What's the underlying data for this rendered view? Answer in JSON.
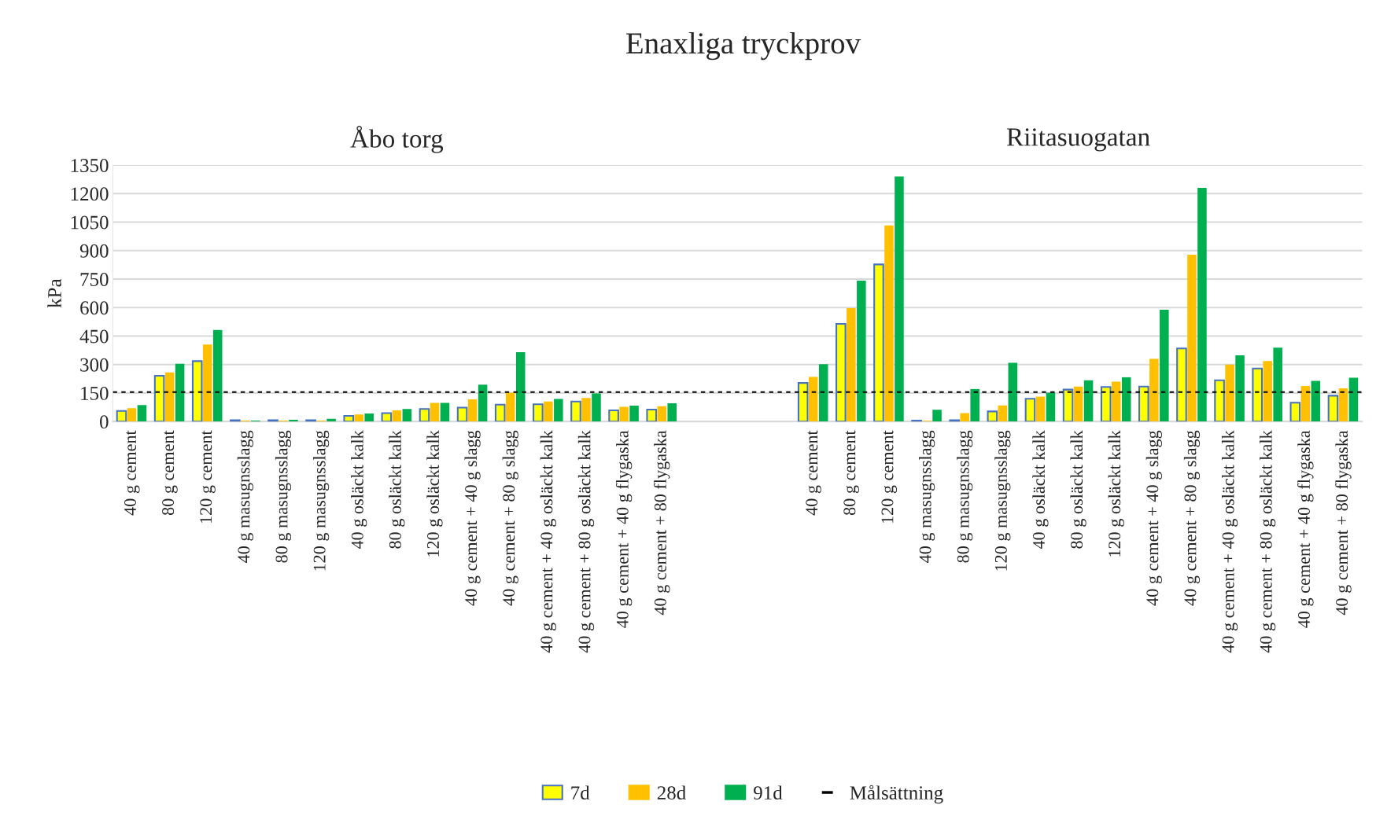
{
  "chart_data": {
    "type": "bar",
    "title": "Enaxliga tryckprov",
    "ylabel": "kPa",
    "annotations": [
      "Åbo torg",
      "Riitasuogatan"
    ],
    "categories": [
      "40 g cement",
      "80 g cement",
      "120 g cement",
      "40 g masugnsslagg",
      "80 g masugnsslagg",
      "120 g masugnsslagg",
      "40 g osläckt kalk",
      "80 g osläckt kalk",
      "120 g osläckt kalk",
      "40 g cement + 40 g slagg",
      "40 g cement + 80 g slagg",
      "40 g cement + 40 g osläckt kalk",
      "40 g cement + 80 g osläckt kalk",
      "40 g cement + 40 g flygaska",
      "40 g cement + 80 flygaska",
      null,
      null,
      null,
      "40 g cement",
      "80 g cement",
      "120 g cement",
      "40 g masugnsslagg",
      "80 g masugnsslagg",
      "120 g masugnsslagg",
      "40 g osläckt kalk",
      "80 g osläckt kalk",
      "120 g osläckt kalk",
      "40 g cement + 40 g slagg",
      "40 g cement + 80 g slagg",
      "40 g cement + 40 g osläckt kalk",
      "40 g cement + 80 g osläckt kalk",
      "40 g cement + 40 g flygaska",
      "40 g cement + 80 flygaska"
    ],
    "series": [
      {
        "name": "7d",
        "color": "#ffff00",
        "values": [
          56,
          241,
          318,
          7,
          7,
          7,
          30,
          44,
          66,
          73,
          89,
          91,
          105,
          59,
          63,
          null,
          null,
          null,
          203,
          514,
          827,
          5,
          7,
          53,
          120,
          168,
          182,
          184,
          385,
          217,
          279,
          99,
          136
        ]
      },
      {
        "name": "28d",
        "color": "#ffc000",
        "values": [
          70,
          258,
          405,
          5,
          5,
          5,
          37,
          59,
          98,
          117,
          152,
          105,
          124,
          77,
          80,
          null,
          null,
          null,
          235,
          597,
          1032,
          4,
          44,
          85,
          131,
          184,
          210,
          330,
          878,
          300,
          318,
          187,
          175
        ]
      },
      {
        "name": "91d",
        "color": "#00b050",
        "values": [
          87,
          304,
          482,
          5,
          9,
          14,
          42,
          66,
          98,
          194,
          365,
          119,
          148,
          84,
          96,
          null,
          null,
          null,
          302,
          742,
          1290,
          62,
          171,
          309,
          152,
          217,
          233,
          588,
          1230,
          348,
          389,
          214,
          230
        ]
      }
    ],
    "ref_lines": [
      {
        "axis": "y",
        "value": 155,
        "label": "Målsättning",
        "color": "#000000",
        "line_style": "dashed"
      }
    ],
    "ylim": [
      0,
      1350
    ],
    "yticks": [
      0,
      150,
      300,
      450,
      600,
      750,
      900,
      1050,
      1200,
      1350
    ],
    "grid": "y",
    "legend": "bottom"
  }
}
